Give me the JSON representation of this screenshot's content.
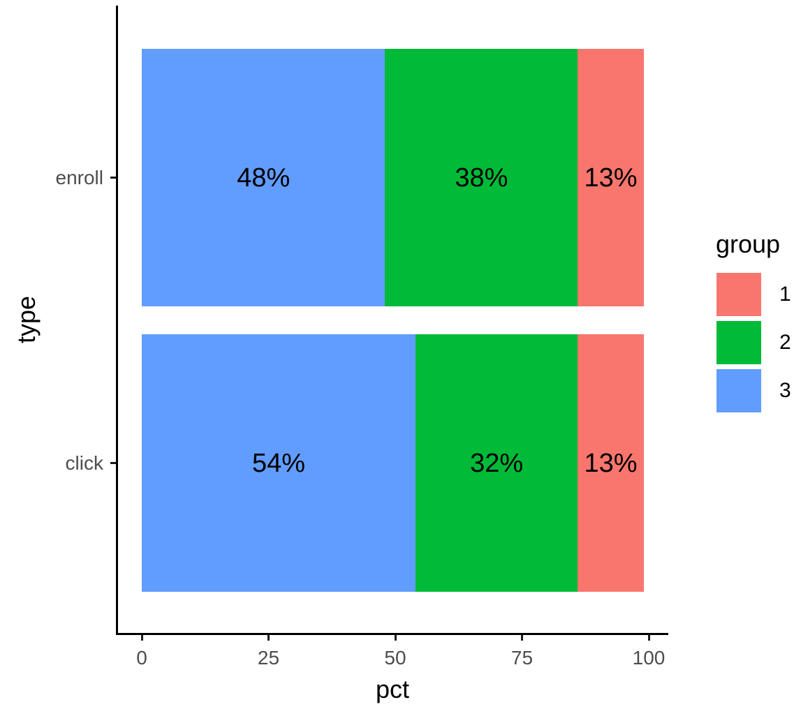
{
  "chart_data": {
    "type": "bar",
    "orientation": "horizontal",
    "stacked": true,
    "xlabel": "pct",
    "ylabel": "type",
    "categories": [
      "enroll",
      "click"
    ],
    "x_ticks": [
      {
        "value": 0,
        "label": "0"
      },
      {
        "value": 25,
        "label": "25"
      },
      {
        "value": 50,
        "label": "50"
      },
      {
        "value": 75,
        "label": "75"
      },
      {
        "value": 100,
        "label": "100"
      }
    ],
    "xlim": [
      0,
      100
    ],
    "grid": false,
    "series": [
      {
        "name": "3",
        "color": "#619CFF",
        "values": [
          48,
          54
        ],
        "labels": [
          "48%",
          "54%"
        ]
      },
      {
        "name": "2",
        "color": "#00BA38",
        "values": [
          38,
          32
        ],
        "labels": [
          "38%",
          "32%"
        ]
      },
      {
        "name": "1",
        "color": "#F8766D",
        "values": [
          13,
          13
        ],
        "labels": [
          "13%",
          "13%"
        ]
      }
    ],
    "legend": {
      "title": "group",
      "position": "right",
      "entries": [
        {
          "label": "1",
          "color": "#F8766D"
        },
        {
          "label": "2",
          "color": "#00BA38"
        },
        {
          "label": "3",
          "color": "#619CFF"
        }
      ]
    },
    "colors": {
      "axis_text": "#4d4d4d",
      "axis_line": "#000000",
      "bar_label_text": "#000000",
      "background": "#ffffff"
    }
  }
}
